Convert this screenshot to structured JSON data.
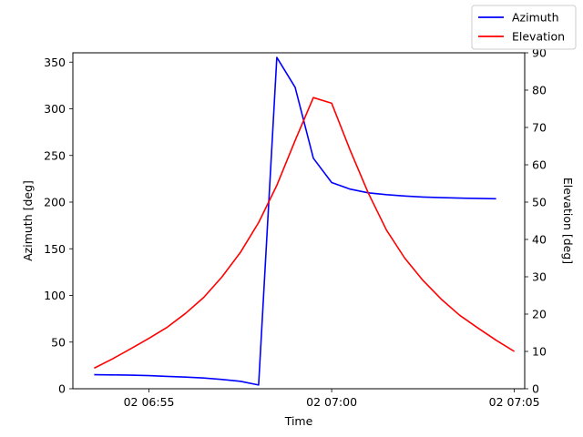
{
  "chart_data": {
    "type": "line",
    "xlabel": "Time",
    "ylabel_left": "Azimuth [deg]",
    "ylabel_right": "Elevation [deg]",
    "x_range": [
      "02 06:52:55",
      "02 07:05:17"
    ],
    "ylim_left": [
      0,
      360
    ],
    "ylim_right": [
      0,
      90
    ],
    "grid": false,
    "legend_placement": "top-right",
    "x_ticks": [
      {
        "time": "02 06:55:00",
        "label": "02 06:55"
      },
      {
        "time": "02 07:00:00",
        "label": "02 07:00"
      },
      {
        "time": "02 07:05:00",
        "label": "02 07:05"
      }
    ],
    "y_ticks_left": [
      0,
      50,
      100,
      150,
      200,
      250,
      300,
      350
    ],
    "y_ticks_right": [
      0,
      10,
      20,
      30,
      40,
      50,
      60,
      70,
      80,
      90
    ],
    "series": [
      {
        "name": "Azimuth",
        "axis": "left",
        "color": "#0000ff",
        "points": [
          [
            "02 06:53:30",
            15
          ],
          [
            "02 06:54:00",
            14.8
          ],
          [
            "02 06:54:30",
            14.5
          ],
          [
            "02 06:55:00",
            14
          ],
          [
            "02 06:55:30",
            13.3
          ],
          [
            "02 06:56:00",
            12.5
          ],
          [
            "02 06:56:30",
            11.5
          ],
          [
            "02 06:57:00",
            10
          ],
          [
            "02 06:57:30",
            8
          ],
          [
            "02 06:58:00",
            4
          ],
          [
            "02 06:58:30",
            355
          ],
          [
            "02 06:59:00",
            323
          ],
          [
            "02 06:59:30",
            247
          ],
          [
            "02 07:00:00",
            221
          ],
          [
            "02 07:00:30",
            214
          ],
          [
            "02 07:01:00",
            210
          ],
          [
            "02 07:01:30",
            208
          ],
          [
            "02 07:02:00",
            206.5
          ],
          [
            "02 07:02:30",
            205.5
          ],
          [
            "02 07:03:00",
            204.8
          ],
          [
            "02 07:03:30",
            204.3
          ],
          [
            "02 07:04:00",
            204
          ],
          [
            "02 07:04:30",
            203.6
          ]
        ]
      },
      {
        "name": "Elevation",
        "axis": "right",
        "color": "#ff0000",
        "points": [
          [
            "02 06:53:30",
            5.5
          ],
          [
            "02 06:54:00",
            8
          ],
          [
            "02 06:54:30",
            10.7
          ],
          [
            "02 06:55:00",
            13.5
          ],
          [
            "02 06:55:30",
            16.5
          ],
          [
            "02 06:56:00",
            20.2
          ],
          [
            "02 06:56:30",
            24.5
          ],
          [
            "02 06:57:00",
            30
          ],
          [
            "02 06:57:30",
            36.5
          ],
          [
            "02 06:58:00",
            44.5
          ],
          [
            "02 06:58:30",
            54.5
          ],
          [
            "02 06:59:00",
            66.5
          ],
          [
            "02 06:59:30",
            78
          ],
          [
            "02 07:00:00",
            76.5
          ],
          [
            "02 07:00:30",
            64
          ],
          [
            "02 07:01:00",
            52.5
          ],
          [
            "02 07:01:30",
            42.5
          ],
          [
            "02 07:02:00",
            35
          ],
          [
            "02 07:02:30",
            29
          ],
          [
            "02 07:03:00",
            24
          ],
          [
            "02 07:03:30",
            19.7
          ],
          [
            "02 07:04:00",
            16.3
          ],
          [
            "02 07:04:30",
            13
          ],
          [
            "02 07:05:00",
            10
          ]
        ]
      }
    ]
  }
}
